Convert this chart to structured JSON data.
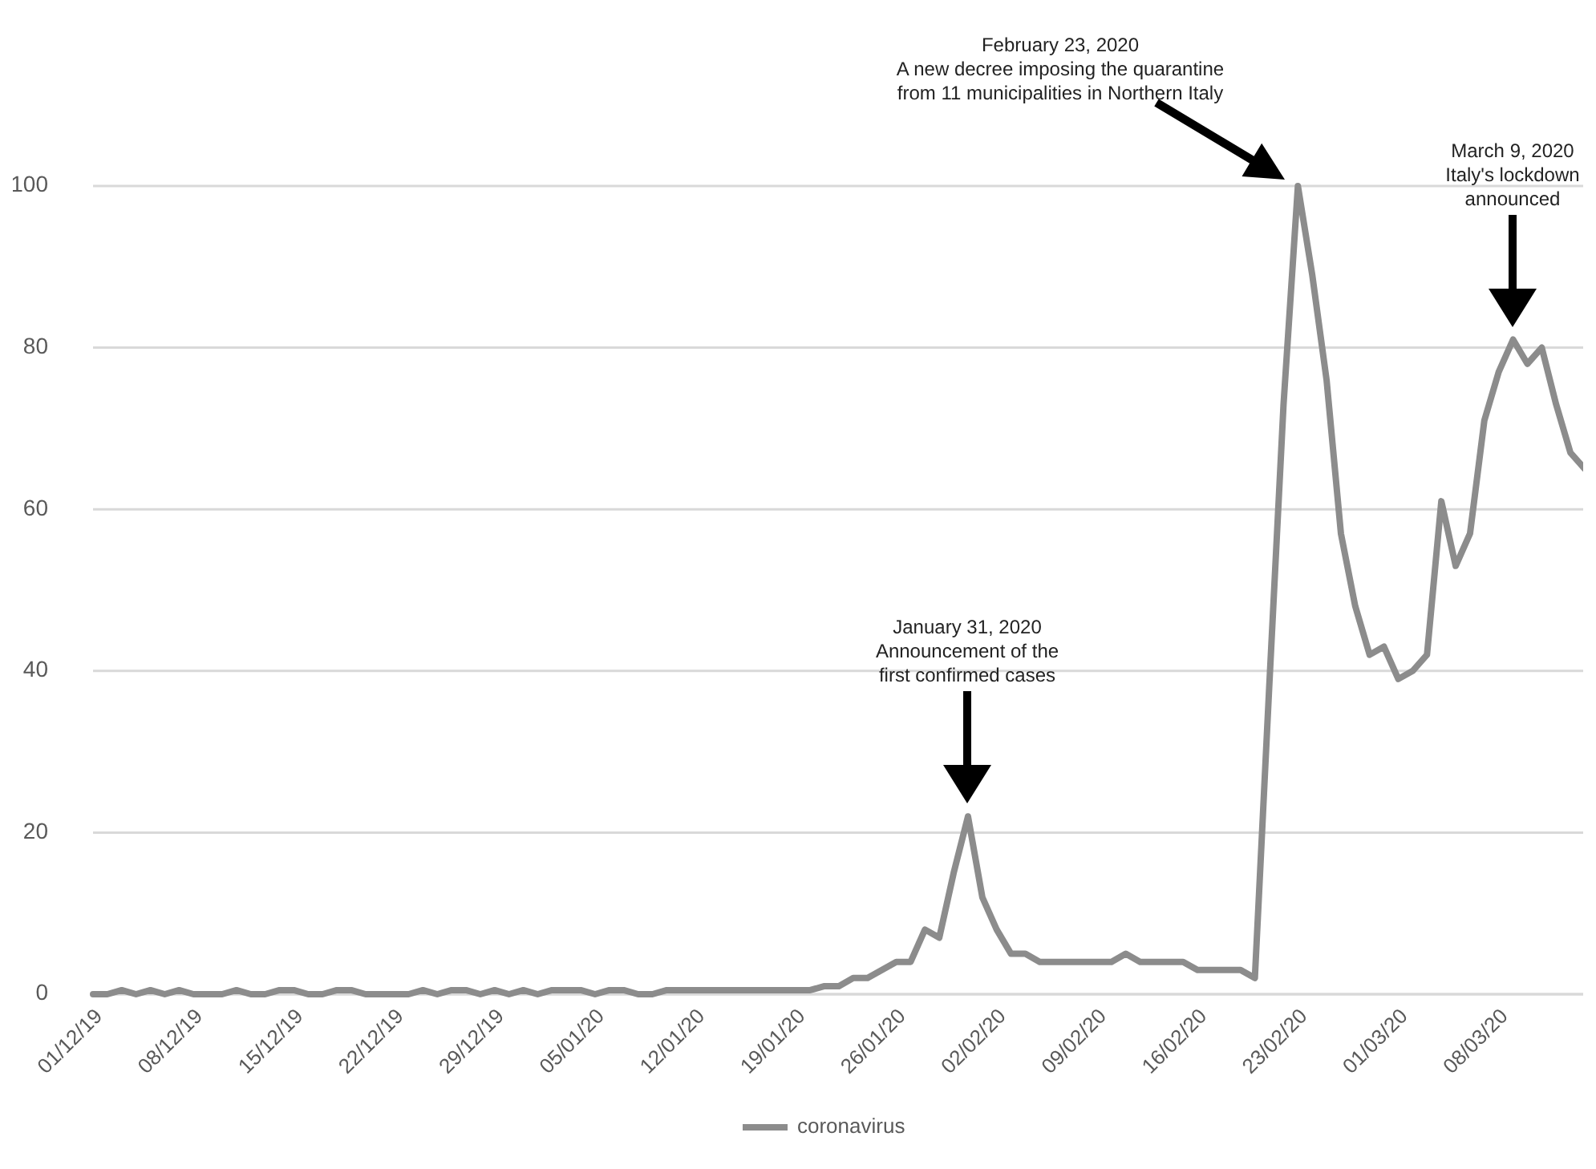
{
  "chart_data": {
    "type": "line",
    "x": [
      "2019-12-01",
      "2019-12-02",
      "2019-12-03",
      "2019-12-04",
      "2019-12-05",
      "2019-12-06",
      "2019-12-07",
      "2019-12-08",
      "2019-12-09",
      "2019-12-10",
      "2019-12-11",
      "2019-12-12",
      "2019-12-13",
      "2019-12-14",
      "2019-12-15",
      "2019-12-16",
      "2019-12-17",
      "2019-12-18",
      "2019-12-19",
      "2019-12-20",
      "2019-12-21",
      "2019-12-22",
      "2019-12-23",
      "2019-12-24",
      "2019-12-25",
      "2019-12-26",
      "2019-12-27",
      "2019-12-28",
      "2019-12-29",
      "2019-12-30",
      "2019-12-31",
      "2020-01-01",
      "2020-01-02",
      "2020-01-03",
      "2020-01-04",
      "2020-01-05",
      "2020-01-06",
      "2020-01-07",
      "2020-01-08",
      "2020-01-09",
      "2020-01-10",
      "2020-01-11",
      "2020-01-12",
      "2020-01-13",
      "2020-01-14",
      "2020-01-15",
      "2020-01-16",
      "2020-01-17",
      "2020-01-18",
      "2020-01-19",
      "2020-01-20",
      "2020-01-21",
      "2020-01-22",
      "2020-01-23",
      "2020-01-24",
      "2020-01-25",
      "2020-01-26",
      "2020-01-27",
      "2020-01-28",
      "2020-01-29",
      "2020-01-30",
      "2020-01-31",
      "2020-02-01",
      "2020-02-02",
      "2020-02-03",
      "2020-02-04",
      "2020-02-05",
      "2020-02-06",
      "2020-02-07",
      "2020-02-08",
      "2020-02-09",
      "2020-02-10",
      "2020-02-11",
      "2020-02-12",
      "2020-02-13",
      "2020-02-14",
      "2020-02-15",
      "2020-02-16",
      "2020-02-17",
      "2020-02-18",
      "2020-02-19",
      "2020-02-20",
      "2020-02-21",
      "2020-02-22",
      "2020-02-23",
      "2020-02-24",
      "2020-02-25",
      "2020-02-26",
      "2020-02-27",
      "2020-02-28",
      "2020-02-29",
      "2020-03-01",
      "2020-03-02",
      "2020-03-03",
      "2020-03-04",
      "2020-03-05",
      "2020-03-06",
      "2020-03-07",
      "2020-03-08",
      "2020-03-09",
      "2020-03-10",
      "2020-03-11",
      "2020-03-12",
      "2020-03-13",
      "2020-03-14"
    ],
    "series": [
      {
        "name": "coronavirus",
        "color": "#8c8c8c",
        "values": [
          0,
          0,
          0.5,
          0,
          0.5,
          0,
          0.5,
          0,
          0,
          0,
          0.5,
          0,
          0,
          0.5,
          0.5,
          0,
          0,
          0.5,
          0.5,
          0,
          0,
          0,
          0,
          0.5,
          0,
          0.5,
          0.5,
          0,
          0.5,
          0,
          0.5,
          0,
          0.5,
          0.5,
          0.5,
          0,
          0.5,
          0.5,
          0,
          0,
          0.5,
          0.5,
          0.5,
          0.5,
          0.5,
          0.5,
          0.5,
          0.5,
          0.5,
          0.5,
          0.5,
          1,
          1,
          2,
          2,
          3,
          4,
          4,
          8,
          7,
          15,
          22,
          12,
          8,
          5,
          5,
          4,
          4,
          4,
          4,
          4,
          4,
          5,
          4,
          4,
          4,
          4,
          3,
          3,
          3,
          3,
          2,
          38,
          73,
          100,
          89,
          76,
          57,
          48,
          42,
          43,
          39,
          40,
          42,
          61,
          53,
          57,
          71,
          77,
          81,
          78,
          80,
          73,
          67,
          65
        ]
      }
    ],
    "xlim": [
      "2019-12-01",
      "2020-03-14"
    ],
    "xticks": [
      {
        "value": "2019-12-01",
        "label": "01/12/19"
      },
      {
        "value": "2019-12-08",
        "label": "08/12/19"
      },
      {
        "value": "2019-12-15",
        "label": "15/12/19"
      },
      {
        "value": "2019-12-22",
        "label": "22/12/19"
      },
      {
        "value": "2019-12-29",
        "label": "29/12/19"
      },
      {
        "value": "2020-01-05",
        "label": "05/01/20"
      },
      {
        "value": "2020-01-12",
        "label": "12/01/20"
      },
      {
        "value": "2020-01-19",
        "label": "19/01/20"
      },
      {
        "value": "2020-01-26",
        "label": "26/01/20"
      },
      {
        "value": "2020-02-02",
        "label": "02/02/20"
      },
      {
        "value": "2020-02-09",
        "label": "09/02/20"
      },
      {
        "value": "2020-02-16",
        "label": "16/02/20"
      },
      {
        "value": "2020-02-23",
        "label": "23/02/20"
      },
      {
        "value": "2020-03-01",
        "label": "01/03/20"
      },
      {
        "value": "2020-03-08",
        "label": "08/03/20"
      }
    ],
    "ylim": [
      0,
      100
    ],
    "yticks": [
      0,
      20,
      40,
      60,
      80,
      100
    ],
    "grid": "y",
    "legend": "bottom",
    "marker": "none",
    "line_style": "solid",
    "annotations": [
      "January 31, 2020\nAnnouncement of the\nfirst confirmed cases",
      "February 23, 2020\nA new decree imposing the quarantine\nfrom 11 municipalities in Northern Italy",
      "March 9, 2020\nItaly's lockdown\nannounced"
    ]
  }
}
